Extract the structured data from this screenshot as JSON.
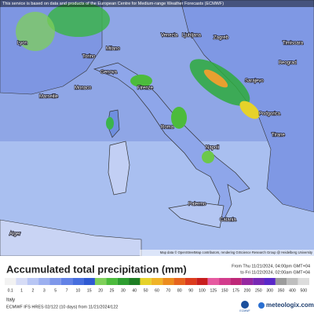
{
  "banner": "This service is based on data and products of the European Centre for Medium-range Weather Forecasts (ECMWF)",
  "cities": [
    "Lyon",
    "Torino",
    "Milano",
    "Venezia",
    "Ljubljana",
    "Zagreb",
    "Timisoara",
    "Beograd",
    "Sarajevo",
    "Genova",
    "Monaco",
    "Marseille",
    "Firenze",
    "Roma",
    "Napoli",
    "Podgorica",
    "Tirane",
    "Palermo",
    "Catania",
    "Alger"
  ],
  "attribution": "Map data © OpenStreetMap contributors, rendering GIScience Research Group @ Heidelberg University",
  "legend": {
    "title": "Accumulated total precipitation (mm)",
    "from": "From Thu 11/21/2024, 04:00pm GMT+04",
    "to": "to Fri 11/22/2024, 02:00am GMT+04",
    "labels": [
      0.1,
      1,
      2,
      3,
      5,
      7,
      10,
      15,
      20,
      25,
      30,
      40,
      50,
      60,
      70,
      80,
      90,
      100,
      125,
      150,
      175,
      200,
      250,
      300,
      350,
      400,
      500
    ],
    "colors": [
      "#f2f2f2",
      "#d6dcf6",
      "#b8c6f4",
      "#9cb0f0",
      "#7f98ea",
      "#6282e6",
      "#466ede",
      "#2f5ad2",
      "#7fd05a",
      "#4cbb3c",
      "#2e9e30",
      "#1e7e24",
      "#e6d22a",
      "#f0b428",
      "#ec8c1e",
      "#e6641e",
      "#dc3c1e",
      "#c81e1e",
      "#e65aa0",
      "#d23c8c",
      "#be2878",
      "#9628a0",
      "#7828b4",
      "#5a28c8",
      "#9c9c9c",
      "#bebebe",
      "#dcdcdc"
    ]
  },
  "footer": {
    "region": "Italy",
    "model": "ECMWF IFS HRES 02/122 (10 days) from 11/21/2024/122",
    "ecmwf": "ECMWF",
    "brand": "meteologix.com"
  }
}
